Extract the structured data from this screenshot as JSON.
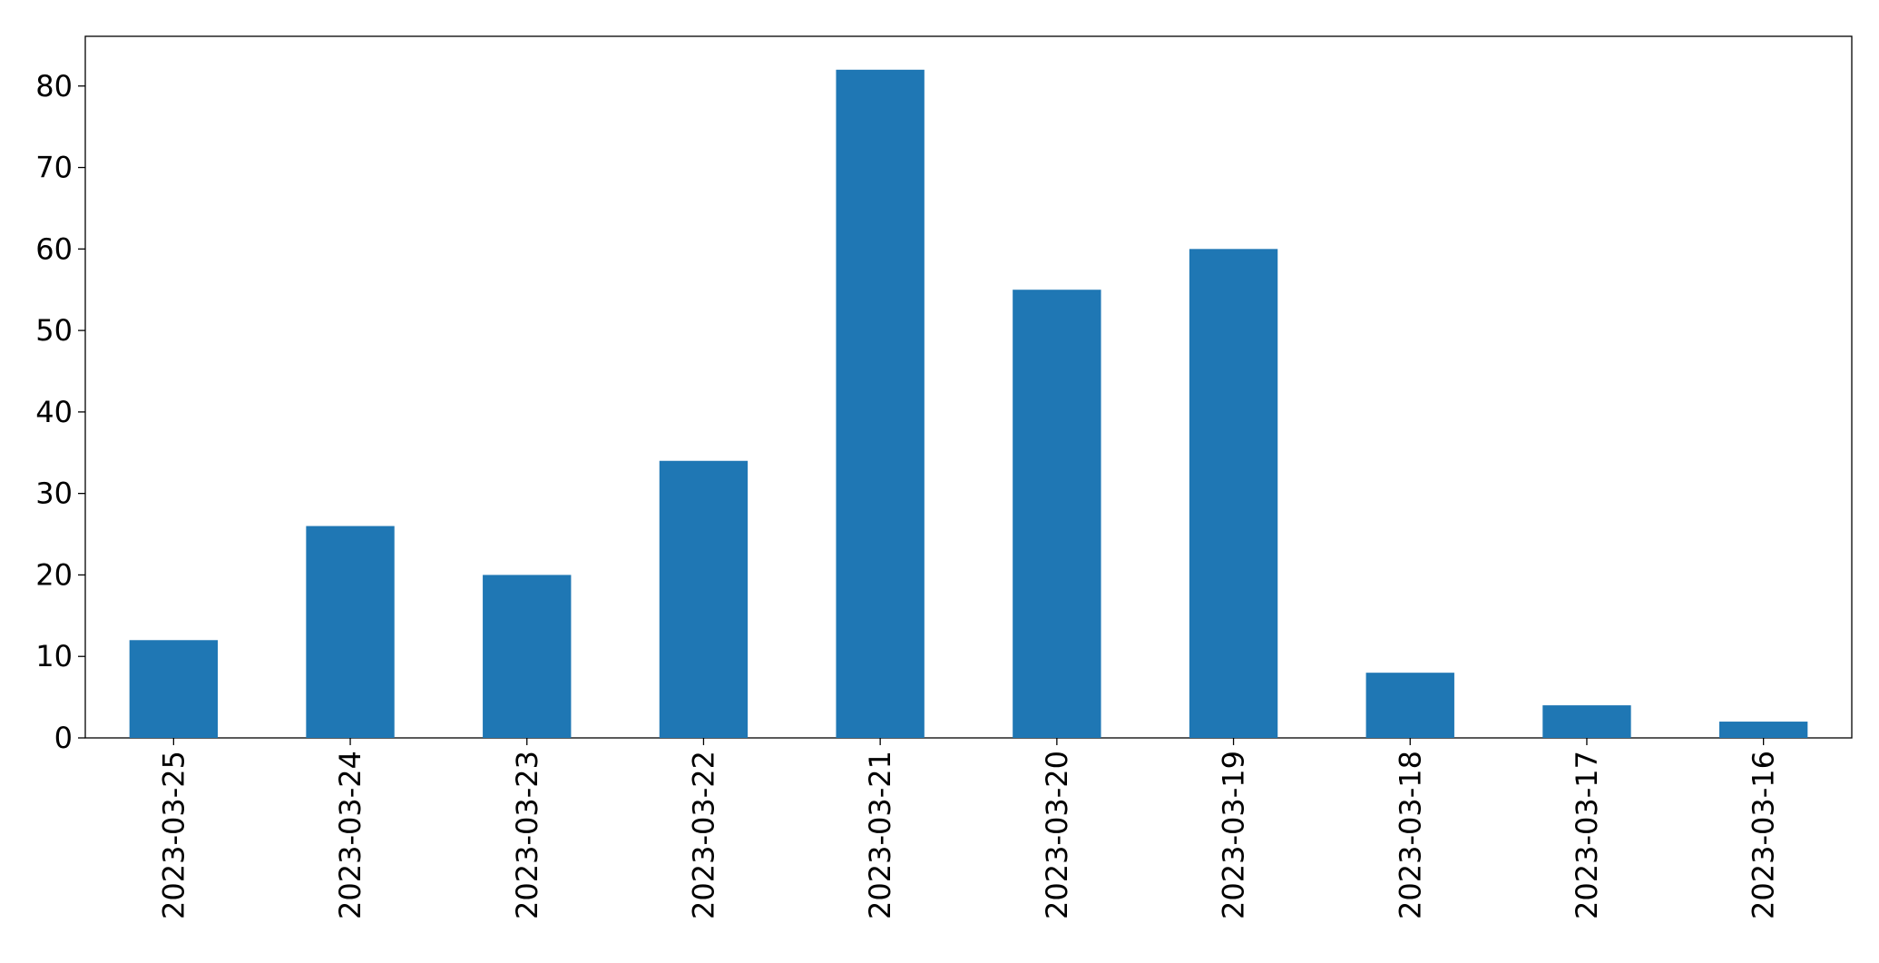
{
  "chart_data": {
    "type": "bar",
    "categories": [
      "2023-03-25",
      "2023-03-24",
      "2023-03-23",
      "2023-03-22",
      "2023-03-21",
      "2023-03-20",
      "2023-03-19",
      "2023-03-18",
      "2023-03-17",
      "2023-03-16"
    ],
    "values": [
      12,
      26,
      20,
      34,
      82,
      55,
      60,
      8,
      4,
      2
    ],
    "color": "#1f77b4",
    "ylim": [
      0,
      86.1
    ],
    "yticks": [
      0,
      10,
      20,
      30,
      40,
      50,
      60,
      70,
      80
    ],
    "grid": false
  }
}
